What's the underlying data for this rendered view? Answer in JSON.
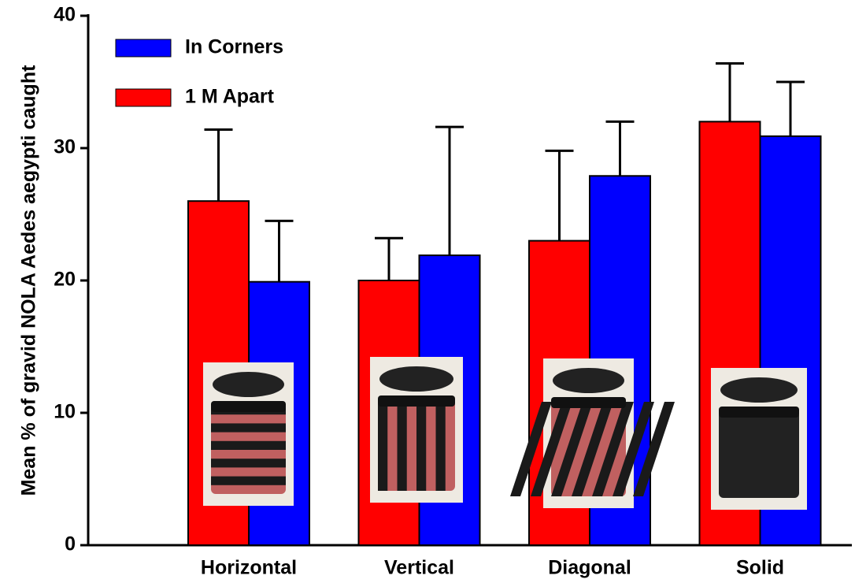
{
  "chart_data": {
    "type": "bar",
    "ylabel": "Mean % of gravid NOLA Aedes aegypti caught",
    "categories": [
      "Horizontal",
      "Vertical",
      "Diagonal",
      "Solid"
    ],
    "series": [
      {
        "name": "In Corners",
        "color": "#0000ff",
        "values": [
          19.9,
          21.9,
          27.9,
          30.9
        ],
        "errors": [
          4.6,
          9.7,
          4.1,
          4.1
        ]
      },
      {
        "name": "1 M Apart",
        "color": "#ff0000",
        "values": [
          26,
          20,
          23,
          32
        ],
        "errors": [
          5.4,
          3.2,
          6.8,
          4.4
        ]
      }
    ],
    "ylim": [
      0,
      40
    ],
    "yticks": [
      0,
      10,
      20,
      30,
      40
    ]
  }
}
